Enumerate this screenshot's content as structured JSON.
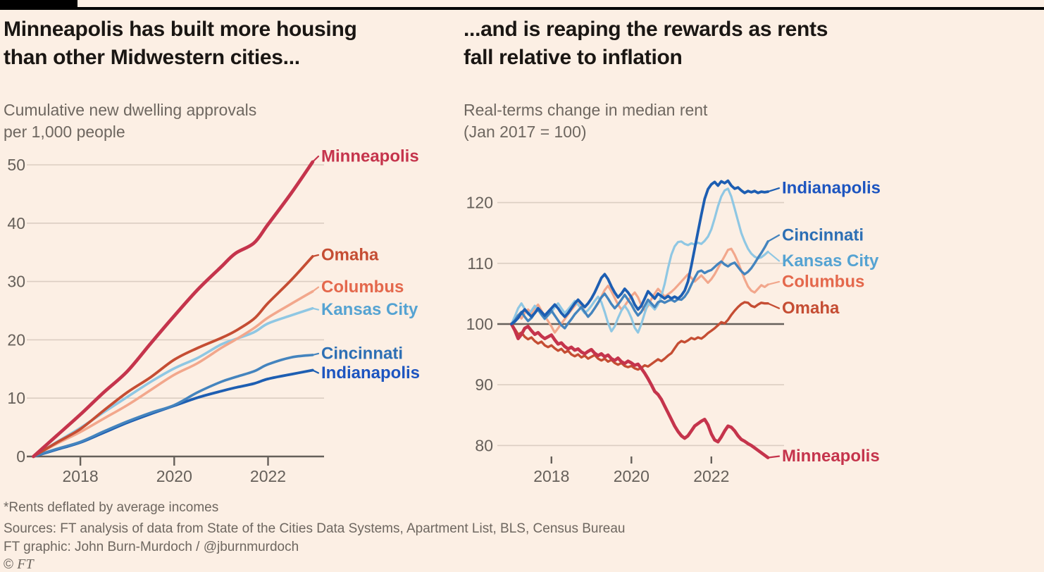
{
  "page": {
    "footnote": "*Rents deflated by average incomes",
    "sources": "Sources: FT analysis of data from State of the Cities Data Systems, Apartment List, BLS, Census Bureau",
    "credit": "FT graphic: John Burn-Murdoch / @jburnmurdoch",
    "copyright_symbol": "©",
    "copyright_brand": "FT"
  },
  "colors": {
    "background": "#FCEFE4",
    "top_bar": "#000000",
    "grid": "#DBCEC2",
    "axis": "#66605A",
    "headline_text": "#1A1613",
    "subtitle_text": "#6E6760",
    "footer_text": "#6E6760",
    "minneapolis": "#C5344C",
    "omaha": "#C54D33",
    "columbus_line": "#F2A78C",
    "columbus_label": "#E4684C",
    "kansas_city_line": "#8FC7E3",
    "kansas_city_label": "#55A3D2",
    "cincinnati_line": "#4484BE",
    "cincinnati_label": "#2D6FB4",
    "indianapolis_line": "#1D5EB2",
    "indianapolis_label": "#1D55C0"
  },
  "chart_data": [
    {
      "id": "approvals",
      "type": "line",
      "title": "Minneapolis has built more housing than other Midwestern cities...",
      "title_lines": [
        "Minneapolis has built more housing",
        "than other Midwestern cities..."
      ],
      "subtitle": "Cumulative new dwelling approvals per 1,000 people",
      "subtitle_lines": [
        "Cumulative new dwelling approvals",
        "per 1,000 people"
      ],
      "xlabel": "",
      "ylabel": "Cumulative new dwelling approvals per 1,000 people",
      "xlim": [
        2017,
        2023
      ],
      "ylim": [
        0,
        52
      ],
      "grid": true,
      "legend_position": "end-of-line-labels",
      "xticks": [
        2018,
        2020,
        2022
      ],
      "yticks": [
        0,
        10,
        20,
        30,
        40,
        50
      ],
      "baseline_value": 0,
      "x": [
        2017,
        2017.5,
        2018,
        2018.5,
        2019,
        2019.5,
        2020,
        2020.5,
        2021,
        2021.3,
        2021.7,
        2022,
        2022.5,
        2022.95
      ],
      "series": [
        {
          "name": "Kansas City",
          "color": "#8FC7E3",
          "label_color": "#55A3D2",
          "width": 3.6,
          "values": [
            0,
            2.5,
            4.9,
            7.6,
            10.2,
            12.8,
            15.1,
            16.9,
            19.2,
            20.1,
            21.3,
            22.8,
            24.2,
            25.4
          ]
        },
        {
          "name": "Columbus",
          "color": "#F2A78C",
          "label_color": "#E4684C",
          "width": 3.6,
          "values": [
            0,
            2.2,
            4.2,
            6.5,
            8.8,
            11.4,
            14,
            16,
            18.6,
            20,
            22,
            23.8,
            26.2,
            28.3
          ]
        },
        {
          "name": "Indianapolis",
          "color": "#1D5EB2",
          "label_color": "#1D55C0",
          "width": 3.8,
          "values": [
            0,
            1.2,
            2.4,
            4.1,
            5.8,
            7.3,
            8.7,
            10.1,
            11.2,
            11.8,
            12.5,
            13.3,
            14.1,
            14.8
          ]
        },
        {
          "name": "Cincinnati",
          "color": "#4484BE",
          "label_color": "#2D6FB4",
          "width": 3.6,
          "values": [
            0,
            1.3,
            2.5,
            4.3,
            6,
            7.5,
            8.8,
            11,
            12.8,
            13.6,
            14.6,
            15.8,
            17,
            17.4
          ]
        },
        {
          "name": "Omaha",
          "color": "#C54D33",
          "label_color": "#C54D33",
          "width": 3.8,
          "values": [
            0,
            2.4,
            4.7,
            7.9,
            11,
            13.6,
            16.6,
            18.6,
            20.3,
            21.5,
            23.6,
            26.3,
            30.3,
            34.3
          ]
        },
        {
          "name": "Minneapolis",
          "color": "#C5344C",
          "label_color": "#C5344C",
          "width": 4.8,
          "values": [
            0,
            3.6,
            7.2,
            11,
            14.6,
            19.4,
            24.1,
            28.6,
            32.5,
            34.8,
            36.6,
            39.8,
            45.2,
            50.5
          ]
        }
      ]
    },
    {
      "id": "rents",
      "type": "line",
      "title": "...and is reaping the rewards as rents fall relative to inflation",
      "title_lines": [
        "...and is reaping the rewards as rents",
        "fall relative to inflation"
      ],
      "subtitle": "Real-terms change in median rent (Jan 2017 = 100)",
      "subtitle_lines": [
        "Real-terms change in median rent",
        "(Jan 2017 = 100)"
      ],
      "xlabel": "",
      "ylabel": "Real-terms change in median rent, index (Jan 2017 = 100)",
      "xlim": [
        2017,
        2023.5
      ],
      "ylim": [
        76,
        126
      ],
      "grid": true,
      "legend_position": "end-of-line-labels",
      "xticks": [
        2018,
        2020,
        2022
      ],
      "yticks": [
        80,
        90,
        100,
        110,
        120
      ],
      "baseline_value": 100,
      "x_start": 2017,
      "x_step_months": 1,
      "series": [
        {
          "name": "Columbus",
          "color": "#F2A78C",
          "label_color": "#E4684C",
          "width": 3.2,
          "values": [
            100,
            100.8,
            101.5,
            100.9,
            101.8,
            102.4,
            101.7,
            102.6,
            103.2,
            102.2,
            101.3,
            100.5,
            99.6,
            98.6,
            99.3,
            100.1,
            100.8,
            101.6,
            102.3,
            103,
            103.6,
            102.8,
            102,
            101.2,
            101.8,
            102.6,
            103.4,
            104.5,
            105.6,
            106.3,
            105.4,
            104.3,
            103.2,
            102.4,
            103,
            103.8,
            104.6,
            105.2,
            104.4,
            103.1,
            102.2,
            103,
            104.1,
            105,
            105.8,
            105.2,
            104.5,
            104.9,
            105.3,
            105.8,
            106.4,
            107,
            107.6,
            108.2,
            107.6,
            107,
            107.5,
            108,
            107.4,
            106.8,
            107.4,
            108.2,
            109.2,
            110.2,
            111.2,
            112.2,
            112.4,
            111.4,
            110.2,
            108.8,
            107.4,
            106.2,
            105.5,
            105.2,
            105.8,
            106.4,
            106.1,
            106.5
          ]
        },
        {
          "name": "Kansas City",
          "color": "#8FC7E3",
          "label_color": "#55A3D2",
          "width": 3.2,
          "values": [
            100,
            101.2,
            102.6,
            103.4,
            102.5,
            101.6,
            102.2,
            103,
            102.3,
            101.5,
            100.8,
            101.4,
            102,
            102.8,
            103.4,
            102.6,
            101.8,
            102.4,
            103.1,
            103.8,
            103.2,
            102.5,
            101.8,
            102.3,
            103,
            103.8,
            104.5,
            103.6,
            102,
            100.2,
            98.8,
            99.6,
            101,
            102.2,
            103,
            102.2,
            101,
            99.4,
            98.6,
            100,
            101.8,
            103.4,
            103,
            102.4,
            103.2,
            104.6,
            106.6,
            109.2,
            111.4,
            112.8,
            113.5,
            113.6,
            113.2,
            113,
            113.3,
            113.1,
            113.4,
            113.2,
            113.7,
            114.4,
            115.6,
            117.4,
            119.4,
            121,
            122,
            122.3,
            121,
            119,
            117,
            115,
            113.6,
            112.4,
            111.6,
            111.1,
            110.8,
            111,
            111.4,
            111.9
          ]
        },
        {
          "name": "Omaha",
          "color": "#C54D33",
          "label_color": "#C54D33",
          "width": 3.4,
          "values": [
            100,
            99.2,
            98.3,
            98.6,
            97.9,
            97.5,
            97.8,
            97.2,
            96.8,
            97.1,
            96.5,
            96.2,
            96.5,
            96,
            95.6,
            95.9,
            95.3,
            95.6,
            95,
            94.7,
            95,
            94.5,
            94.8,
            94.3,
            94.6,
            94.9,
            94.3,
            94,
            94.3,
            93.8,
            94.1,
            93.6,
            93.3,
            93.6,
            93.1,
            92.9,
            93.1,
            92.7,
            92.5,
            92.8,
            93.2,
            93,
            93.4,
            93.8,
            94.2,
            93.9,
            94.3,
            94.8,
            95.2,
            96,
            96.8,
            97.2,
            97,
            97.3,
            97.7,
            97.5,
            97.8,
            97.6,
            98,
            98.5,
            98.9,
            99.3,
            99.8,
            100.3,
            100.1,
            100.7,
            101.5,
            102.2,
            102.8,
            103.3,
            103.6,
            103.5,
            103,
            102.8,
            103.2,
            103.5,
            103.4,
            103.4
          ]
        },
        {
          "name": "Cincinnati",
          "color": "#4484BE",
          "label_color": "#2D6FB4",
          "width": 3.4,
          "values": [
            100,
            100.6,
            101.4,
            102,
            101.2,
            100.5,
            101,
            101.8,
            102.4,
            101.6,
            100.9,
            101.5,
            102.2,
            101.4,
            100.6,
            99.8,
            99.3,
            100.1,
            100.8,
            101.6,
            102.2,
            102.8,
            102,
            101.2,
            101.8,
            102.6,
            103.5,
            104.4,
            105,
            104.2,
            103.3,
            102.6,
            103.2,
            104,
            104.8,
            104,
            103.2,
            102.2,
            101.4,
            102,
            103,
            104,
            103.4,
            102.8,
            103.6,
            103.8,
            103.5,
            103.8,
            104,
            103.7,
            104.1,
            104,
            104.5,
            105.3,
            106.5,
            107.6,
            108.6,
            108.8,
            108.4,
            108.7,
            108.9,
            109.4,
            109.9,
            110.3,
            109.8,
            109.5,
            109.9,
            110.1,
            109.4,
            108.7,
            108.2,
            108.6,
            109.2,
            110,
            110.9,
            111.7,
            112.6,
            113.6
          ]
        },
        {
          "name": "Minneapolis",
          "color": "#C5344C",
          "label_color": "#C5344C",
          "width": 4.6,
          "values": [
            100,
            99,
            97.6,
            98.3,
            99.3,
            99.6,
            98.9,
            98.3,
            98.6,
            98,
            97.6,
            97.9,
            98.2,
            97.4,
            96.7,
            96.9,
            96.3,
            95.9,
            96.2,
            95.7,
            95.9,
            95.4,
            95.1,
            95.5,
            95.8,
            95.2,
            94.8,
            95.1,
            94.6,
            94.9,
            94.3,
            94,
            94.4,
            93.8,
            93.5,
            93.9,
            93.6,
            93.2,
            93.4,
            92.7,
            91.9,
            91,
            90,
            88.9,
            88.4,
            87.6,
            86.5,
            85.4,
            84.3,
            83.2,
            82.3,
            81.6,
            81.2,
            81.6,
            82.4,
            83.2,
            83.6,
            84,
            84.3,
            83.4,
            81.9,
            80.9,
            80.6,
            81.4,
            82.4,
            83.2,
            83,
            82.4,
            81.6,
            81,
            80.7,
            80.3,
            80,
            79.6,
            79.2,
            78.8,
            78.4,
            78
          ]
        },
        {
          "name": "Indianapolis",
          "color": "#1D5EB2",
          "label_color": "#1D55C0",
          "width": 3.8,
          "values": [
            100,
            100.4,
            101,
            101.8,
            102.4,
            101.8,
            101.2,
            101.8,
            102.6,
            102,
            101.4,
            102,
            102.6,
            103.2,
            102.6,
            101.8,
            101.2,
            101.8,
            102.6,
            103.4,
            104,
            103.4,
            102.8,
            103.4,
            104.2,
            105.2,
            106.4,
            107.6,
            108.2,
            107.4,
            106.2,
            105.2,
            104.4,
            105,
            105.8,
            105.2,
            104.4,
            103.2,
            102.4,
            103,
            104.2,
            105.4,
            104.8,
            104.2,
            105,
            104.6,
            104.2,
            104.6,
            104.2,
            104.5,
            104.2,
            104.7,
            105.5,
            107,
            109.6,
            112.4,
            115.2,
            118,
            120.6,
            122.2,
            123,
            123.4,
            122.8,
            123.5,
            123.2,
            123.6,
            122.8,
            122.3,
            122.5,
            122,
            121.6,
            121.9,
            121.7,
            121.9,
            121.6,
            121.8,
            121.7,
            121.8
          ]
        }
      ]
    }
  ]
}
